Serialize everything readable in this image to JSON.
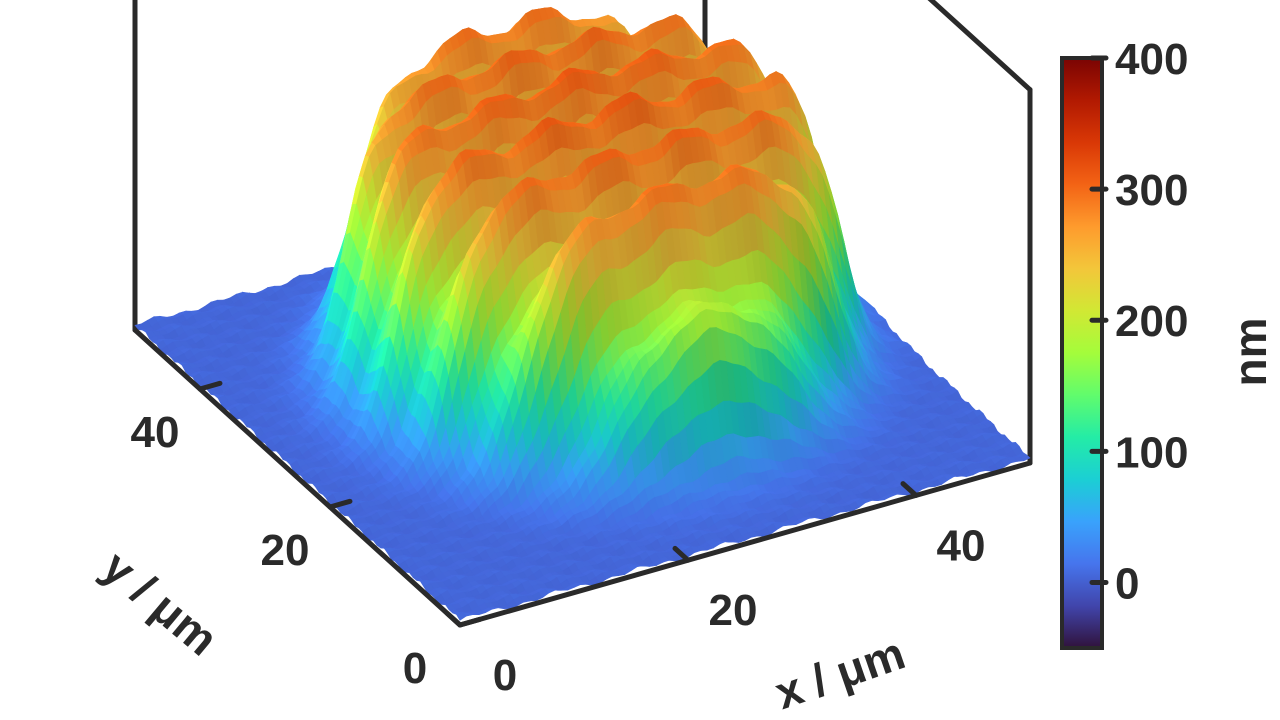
{
  "chart_data": {
    "type": "surface",
    "description_units": {
      "x": "µm",
      "y": "µm",
      "z": "nm"
    },
    "xlabel": "x / μm",
    "ylabel": "y / μm",
    "colorbar_label": "nm",
    "xlim": [
      0,
      50
    ],
    "ylim": [
      0,
      50
    ],
    "zlim": [
      -50,
      400
    ],
    "x_ticks": [
      0,
      20,
      40
    ],
    "x_tick_labels": [
      "0",
      "20",
      "40"
    ],
    "y_ticks": [
      0,
      20,
      40
    ],
    "y_tick_labels": [
      "0",
      "20",
      "40"
    ],
    "colorbar_ticks": [
      0,
      100,
      200,
      300,
      400
    ],
    "colorbar_tick_labels": [
      "0",
      "100",
      "200",
      "300",
      "400"
    ],
    "colormap": "turbo",
    "colormap_stops": [
      "#30123b",
      "#4145ab",
      "#4675ed",
      "#39a2fc",
      "#1bcfd4",
      "#24eca6",
      "#61fc6c",
      "#a4fc3b",
      "#d1e834",
      "#f3c63a",
      "#fe9b2d",
      "#f36315",
      "#d93806",
      "#b11901",
      "#7a0403"
    ],
    "feature": {
      "shape": "circular grating pad",
      "center": [
        27,
        27
      ],
      "radius": 19,
      "plateau_height": 260,
      "ridge_count": 7,
      "ridge_amplitude": 45,
      "background_height": 5
    },
    "grid": false,
    "colorbar_position": "right"
  }
}
